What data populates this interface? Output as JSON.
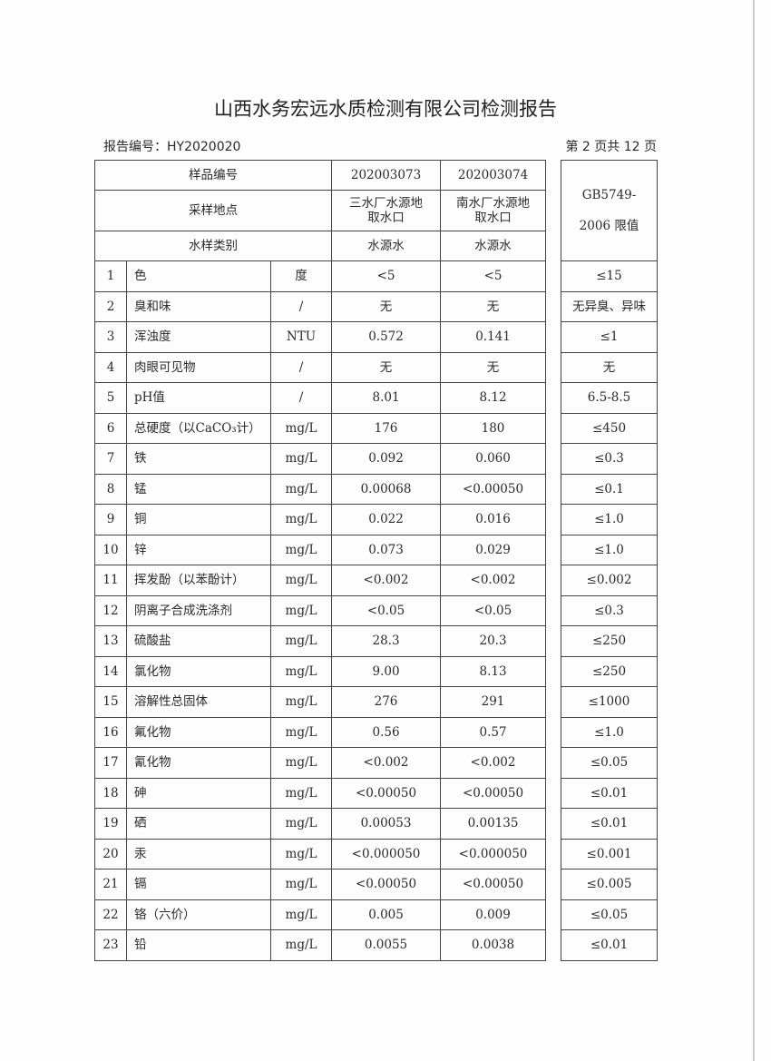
{
  "title": "山西水务宏远水质检测有限公司检测报告",
  "report_no": "报告编号：HY2020020",
  "page_info": "第 2 页共 12 页",
  "header": {
    "sample_no_label": "样品编号",
    "sample_no": [
      "202003073",
      "202003074"
    ],
    "location_label": "采样地点",
    "location": [
      "三水厂水源地取水口",
      "南水厂水源地取水口"
    ],
    "type_label": "水样类别",
    "type": [
      "水源水",
      "水源水"
    ],
    "limit_label": "GB5749-2006 限值"
  },
  "rows": [
    {
      "no": "1",
      "item": "色",
      "unit": "度",
      "v1": "<5",
      "v2": "<5",
      "limit": "≤15"
    },
    {
      "no": "2",
      "item": "臭和味",
      "unit": "/",
      "v1": "无",
      "v2": "无",
      "limit": "无异臭、异味"
    },
    {
      "no": "3",
      "item": "浑浊度",
      "unit": "NTU",
      "v1": "0.572",
      "v2": "0.141",
      "limit": "≤1"
    },
    {
      "no": "4",
      "item": "肉眼可见物",
      "unit": "/",
      "v1": "无",
      "v2": "无",
      "limit": "无"
    },
    {
      "no": "5",
      "item": "pH值",
      "unit": "/",
      "v1": "8.01",
      "v2": "8.12",
      "limit": "6.5-8.5"
    },
    {
      "no": "6",
      "item": "总硬度（以CaCO₃计）",
      "unit": "mg/L",
      "v1": "176",
      "v2": "180",
      "limit": "≤450"
    },
    {
      "no": "7",
      "item": "铁",
      "unit": "mg/L",
      "v1": "0.092",
      "v2": "0.060",
      "limit": "≤0.3"
    },
    {
      "no": "8",
      "item": "锰",
      "unit": "mg/L",
      "v1": "0.00068",
      "v2": "<0.00050",
      "limit": "≤0.1"
    },
    {
      "no": "9",
      "item": "铜",
      "unit": "mg/L",
      "v1": "0.022",
      "v2": "0.016",
      "limit": "≤1.0"
    },
    {
      "no": "10",
      "item": "锌",
      "unit": "mg/L",
      "v1": "0.073",
      "v2": "0.029",
      "limit": "≤1.0"
    },
    {
      "no": "11",
      "item": "挥发酚（以苯酚计）",
      "unit": "mg/L",
      "v1": "<0.002",
      "v2": "<0.002",
      "limit": "≤0.002"
    },
    {
      "no": "12",
      "item": "阴离子合成洗涤剂",
      "unit": "mg/L",
      "v1": "<0.05",
      "v2": "<0.05",
      "limit": "≤0.3"
    },
    {
      "no": "13",
      "item": "硫酸盐",
      "unit": "mg/L",
      "v1": "28.3",
      "v2": "20.3",
      "limit": "≤250"
    },
    {
      "no": "14",
      "item": "氯化物",
      "unit": "mg/L",
      "v1": "9.00",
      "v2": "8.13",
      "limit": "≤250"
    },
    {
      "no": "15",
      "item": "溶解性总固体",
      "unit": "mg/L",
      "v1": "276",
      "v2": "291",
      "limit": "≤1000"
    },
    {
      "no": "16",
      "item": "氟化物",
      "unit": "mg/L",
      "v1": "0.56",
      "v2": "0.57",
      "limit": "≤1.0"
    },
    {
      "no": "17",
      "item": "氰化物",
      "unit": "mg/L",
      "v1": "<0.002",
      "v2": "<0.002",
      "limit": "≤0.05"
    },
    {
      "no": "18",
      "item": "砷",
      "unit": "mg/L",
      "v1": "<0.00050",
      "v2": "<0.00050",
      "limit": "≤0.01"
    },
    {
      "no": "19",
      "item": "硒",
      "unit": "mg/L",
      "v1": "0.00053",
      "v2": "0.00135",
      "limit": "≤0.01"
    },
    {
      "no": "20",
      "item": "汞",
      "unit": "mg/L",
      "v1": "<0.000050",
      "v2": "<0.000050",
      "limit": "≤0.001"
    },
    {
      "no": "21",
      "item": "镉",
      "unit": "mg/L",
      "v1": "<0.00050",
      "v2": "<0.00050",
      "limit": "≤0.005"
    },
    {
      "no": "22",
      "item": "铬（六价）",
      "unit": "mg/L",
      "v1": "0.005",
      "v2": "0.009",
      "limit": "≤0.05"
    },
    {
      "no": "23",
      "item": "铅",
      "unit": "mg/L",
      "v1": "0.0055",
      "v2": "0.0038",
      "limit": "≤0.01"
    }
  ]
}
